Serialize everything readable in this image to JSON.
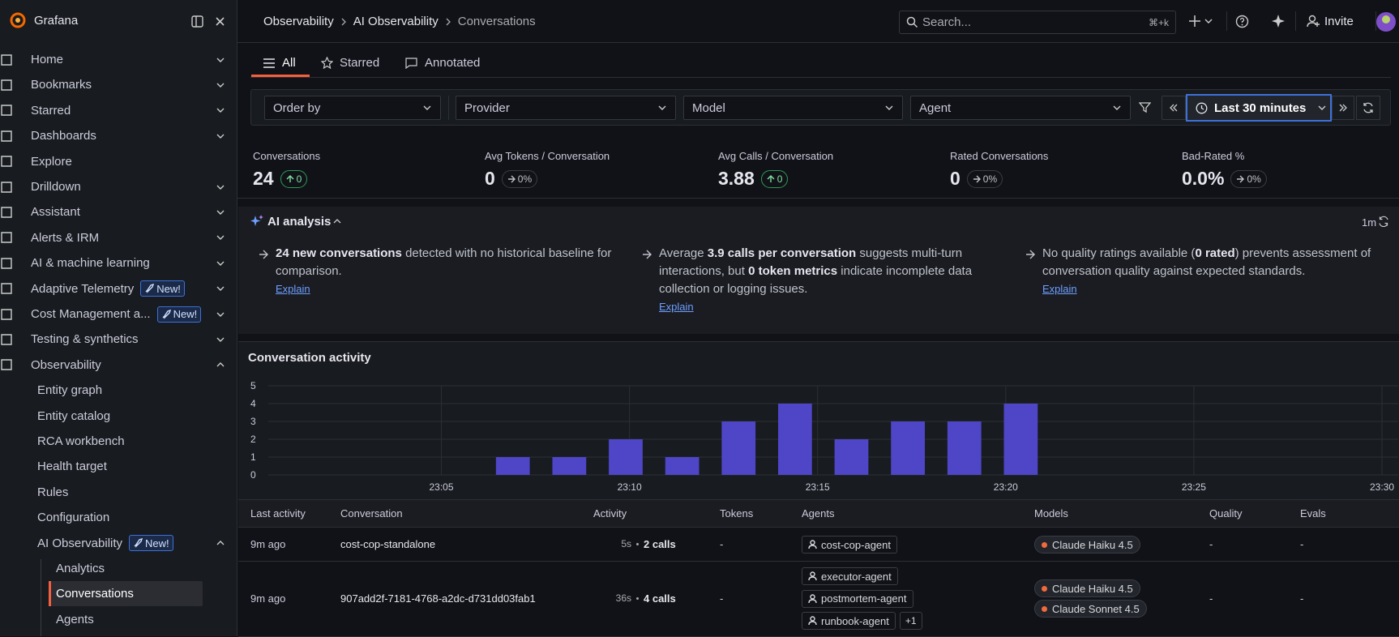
{
  "app": {
    "name": "Grafana"
  },
  "breadcrumbs": [
    "Observability",
    "AI Observability",
    "Conversations"
  ],
  "search": {
    "placeholder": "Search...",
    "shortcut": "⌘+k"
  },
  "invite": "Invite",
  "nav": {
    "items": [
      {
        "label": "Home",
        "expanded": false
      },
      {
        "label": "Bookmarks",
        "expanded": false
      },
      {
        "label": "Starred",
        "expanded": false
      },
      {
        "label": "Dashboards",
        "expanded": false
      },
      {
        "label": "Explore"
      },
      {
        "label": "Drilldown",
        "expanded": false
      },
      {
        "label": "Assistant",
        "expanded": false
      },
      {
        "label": "Alerts & IRM",
        "expanded": false
      },
      {
        "label": "AI & machine learning",
        "expanded": false
      },
      {
        "label": "Adaptive Telemetry",
        "badge": "New!",
        "expanded": false
      },
      {
        "label": "Cost Management a...",
        "badge": "New!",
        "expanded": false
      },
      {
        "label": "Testing & synthetics",
        "expanded": false
      },
      {
        "label": "Observability",
        "expanded": true,
        "children": [
          {
            "label": "Entity graph"
          },
          {
            "label": "Entity catalog"
          },
          {
            "label": "RCA workbench"
          },
          {
            "label": "Health target"
          },
          {
            "label": "Rules"
          },
          {
            "label": "Configuration"
          },
          {
            "label": "AI Observability",
            "badge": "New!",
            "expanded": true,
            "children": [
              {
                "label": "Analytics"
              },
              {
                "label": "Conversations",
                "active": true
              },
              {
                "label": "Agents"
              }
            ]
          }
        ]
      }
    ]
  },
  "tabs": [
    "All",
    "Starred",
    "Annotated"
  ],
  "filters": [
    "Order by",
    "Provider",
    "Model",
    "Agent"
  ],
  "time_range": "Last 30 minutes",
  "stats": [
    {
      "label": "Conversations",
      "value": 24,
      "change": "0",
      "trend": "up"
    },
    {
      "label": "Avg Tokens / Conversation",
      "value": 0,
      "change": "0%",
      "trend": "flat"
    },
    {
      "label": "Avg Calls / Conversation",
      "value": 3.88,
      "change": "0",
      "trend": "up"
    },
    {
      "label": "Rated Conversations",
      "value": 0,
      "change": "0%",
      "trend": "flat"
    },
    {
      "label": "Bad-Rated %",
      "value": "0.0%",
      "change": "0%",
      "trend": "flat"
    }
  ],
  "ai_analysis": {
    "title": "AI analysis",
    "age": "1m",
    "items": [
      {
        "segments": [
          {
            "text": "24 new conversations",
            "strong": true
          },
          {
            "text": " detected with no historical baseline for comparison."
          }
        ],
        "link": "Explain"
      },
      {
        "segments": [
          {
            "text": "Average "
          },
          {
            "text": "3.9 calls per conversation",
            "strong": true
          },
          {
            "text": " suggests multi-turn interactions, but "
          },
          {
            "text": "0 token metrics",
            "strong": true
          },
          {
            "text": " indicate incomplete data collection or logging issues."
          }
        ],
        "link": "Explain"
      },
      {
        "segments": [
          {
            "text": "No quality ratings available ("
          },
          {
            "text": "0 rated",
            "strong": true
          },
          {
            "text": ") prevents assessment of conversation quality against expected standards."
          }
        ],
        "link": "Explain"
      }
    ]
  },
  "chart_data": {
    "type": "bar",
    "title": "Conversation activity",
    "x": [
      6.9,
      8.4,
      9.9,
      11.4,
      12.9,
      14.4,
      15.9,
      17.4,
      18.9,
      20.4
    ],
    "values": [
      1,
      1,
      2,
      1,
      3,
      4,
      2,
      3,
      3,
      4
    ],
    "color": "#4e46c6",
    "xlim": [
      0.4,
      30
    ],
    "xticks": [
      {
        "value": 5,
        "label": "23:05"
      },
      {
        "value": 10,
        "label": "23:10"
      },
      {
        "value": 15,
        "label": "23:15"
      },
      {
        "value": 20,
        "label": "23:20"
      },
      {
        "value": 25,
        "label": "23:25"
      },
      {
        "value": 30,
        "label": "23:30"
      }
    ],
    "ylim": [
      0,
      5
    ],
    "yticks": [
      0,
      1,
      2,
      3,
      4,
      5
    ],
    "grid": true
  },
  "table": {
    "columns": [
      "Last activity",
      "Conversation",
      "Activity",
      "Tokens",
      "Agents",
      "Models",
      "Quality",
      "Evals"
    ],
    "rows": [
      {
        "last_activity": "9m ago",
        "conversation": "cost-cop-standalone",
        "duration": "5s",
        "calls": "2 calls",
        "tokens": "-",
        "agents": [
          "cost-cop-agent"
        ],
        "models": [
          "Claude Haiku 4.5"
        ],
        "quality": "-",
        "evals": "-"
      },
      {
        "last_activity": "9m ago",
        "conversation": "907add2f-7181-4768-a2dc-d731dd03fab1",
        "duration": "36s",
        "calls": "4 calls",
        "tokens": "-",
        "agents": [
          "executor-agent",
          "postmortem-agent",
          "runbook-agent"
        ],
        "more_agents": "+1",
        "models": [
          "Claude Haiku 4.5",
          "Claude Sonnet 4.5"
        ],
        "quality": "-",
        "evals": "-"
      }
    ]
  }
}
